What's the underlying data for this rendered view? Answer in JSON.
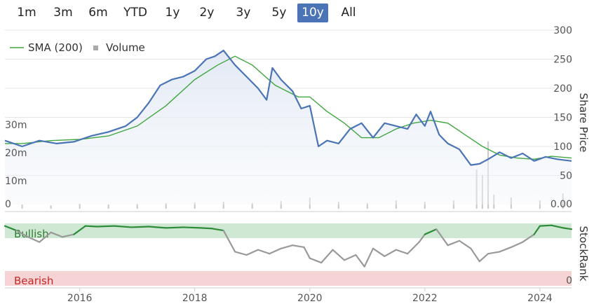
{
  "range_selector": {
    "buttons": [
      {
        "label": "1m",
        "active": false
      },
      {
        "label": "3m",
        "active": false
      },
      {
        "label": "6m",
        "active": false
      },
      {
        "label": "YTD",
        "active": false
      },
      {
        "label": "1y",
        "active": false
      },
      {
        "label": "2y",
        "active": false
      },
      {
        "label": "3y",
        "active": false
      },
      {
        "label": "5y",
        "active": false
      },
      {
        "label": "10y",
        "active": true
      },
      {
        "label": "All",
        "active": false
      }
    ]
  },
  "legend": {
    "sma_label": "SMA (200)",
    "volume_label": "Volume"
  },
  "colors": {
    "price": "#4a74b5",
    "sma": "#3fa63f",
    "bull_band": "#cfe8d4",
    "bear_band": "#f6d3d5",
    "bull_text": "#2e7d32",
    "bear_text": "#c62828",
    "stockrank_bull": "#2e8b3a",
    "stockrank_neutral": "#999999"
  },
  "chart_data": [
    {
      "type": "line",
      "y_title": "Share Price",
      "y_ticks": [
        "300",
        "250",
        "200",
        "150",
        "100",
        "50"
      ],
      "ylim": [
        0,
        300
      ],
      "x_ticks": [
        "2016",
        "2018",
        "2020",
        "2022",
        "2024"
      ],
      "xlim": [
        2014.7,
        2024.55
      ],
      "series": [
        {
          "name": "",
          "x": [
            2014.7,
            2015.0,
            2015.3,
            2015.6,
            2015.9,
            2016.2,
            2016.5,
            2016.8,
            2017.0,
            2017.2,
            2017.4,
            2017.6,
            2017.8,
            2018.0,
            2018.2,
            2018.35,
            2018.5,
            2018.7,
            2018.9,
            2019.1,
            2019.25,
            2019.35,
            2019.5,
            2019.7,
            2019.85,
            2020.0,
            2020.15,
            2020.3,
            2020.5,
            2020.7,
            2020.9,
            2021.1,
            2021.3,
            2021.5,
            2021.7,
            2021.85,
            2022.0,
            2022.1,
            2022.25,
            2022.4,
            2022.6,
            2022.8,
            2022.95,
            2023.1,
            2023.3,
            2023.5,
            2023.7,
            2023.9,
            2024.1,
            2024.3,
            2024.55
          ],
          "values": [
            110,
            100,
            110,
            105,
            108,
            118,
            125,
            135,
            150,
            175,
            205,
            215,
            220,
            230,
            250,
            255,
            265,
            240,
            220,
            200,
            180,
            235,
            215,
            195,
            165,
            170,
            100,
            110,
            105,
            130,
            140,
            115,
            140,
            135,
            130,
            155,
            135,
            160,
            120,
            105,
            95,
            68,
            70,
            78,
            90,
            80,
            88,
            75,
            82,
            78,
            75
          ]
        },
        {
          "name": "SMA (200)",
          "x": [
            2014.7,
            2015.0,
            2015.5,
            2016.0,
            2016.5,
            2017.0,
            2017.5,
            2018.0,
            2018.4,
            2018.7,
            2019.0,
            2019.4,
            2019.8,
            2020.0,
            2020.3,
            2020.6,
            2020.9,
            2021.2,
            2021.5,
            2021.8,
            2022.1,
            2022.4,
            2022.7,
            2023.0,
            2023.3,
            2023.6,
            2023.9,
            2024.2,
            2024.55
          ],
          "values": [
            105,
            105,
            110,
            112,
            118,
            135,
            170,
            215,
            240,
            255,
            240,
            205,
            185,
            185,
            160,
            140,
            115,
            115,
            130,
            140,
            145,
            140,
            120,
            100,
            85,
            80,
            78,
            83,
            80
          ]
        }
      ]
    },
    {
      "type": "bar",
      "y_title": "",
      "y_ticks_left": [
        "30m",
        "20m",
        "10m",
        "0"
      ],
      "y_ticks_right": [
        "0.00"
      ],
      "ylim": [
        0,
        30
      ],
      "series": [
        {
          "name": "Volume",
          "x": [
            2015.0,
            2015.5,
            2016.0,
            2016.5,
            2017.0,
            2017.5,
            2018.0,
            2018.5,
            2019.0,
            2019.5,
            2020.0,
            2020.5,
            2021.0,
            2021.5,
            2022.0,
            2022.5,
            2022.9,
            2023.0,
            2023.1,
            2023.2,
            2023.5,
            2024.0,
            2024.4
          ],
          "values": [
            1.5,
            1.2,
            1.8,
            1.5,
            1.7,
            2.0,
            2.2,
            2.5,
            2.0,
            2.8,
            4.0,
            2.5,
            2.0,
            3.0,
            2.5,
            3.0,
            14.0,
            12.0,
            24.0,
            5.0,
            4.0,
            3.0,
            5.5
          ]
        }
      ]
    },
    {
      "type": "line",
      "y_title": "StockRank",
      "band_labels": [
        "Bullish",
        "Bearish"
      ],
      "right_tick": "0",
      "ylim": [
        0,
        100
      ],
      "series": [
        {
          "name": "",
          "x": [
            2014.7,
            2014.9,
            2015.1,
            2015.3,
            2015.5,
            2015.7,
            2015.9,
            2016.1,
            2016.3,
            2016.6,
            2016.9,
            2017.2,
            2017.5,
            2017.8,
            2018.1,
            2018.3,
            2018.5,
            2018.7,
            2018.9,
            2019.1,
            2019.3,
            2019.5,
            2019.7,
            2019.9,
            2020.0,
            2020.2,
            2020.4,
            2020.6,
            2020.8,
            2020.95,
            2021.1,
            2021.3,
            2021.5,
            2021.7,
            2021.9,
            2022.0,
            2022.2,
            2022.4,
            2022.6,
            2022.8,
            2022.95,
            2023.1,
            2023.3,
            2023.5,
            2023.7,
            2023.9,
            2024.0,
            2024.2,
            2024.4,
            2024.55
          ],
          "values": [
            95,
            88,
            78,
            70,
            85,
            78,
            82,
            95,
            94,
            95,
            93,
            94,
            92,
            93,
            92,
            91,
            88,
            55,
            50,
            58,
            52,
            60,
            65,
            62,
            45,
            38,
            58,
            42,
            50,
            32,
            60,
            48,
            58,
            52,
            70,
            82,
            90,
            65,
            72,
            60,
            40,
            52,
            55,
            62,
            70,
            82,
            95,
            96,
            92,
            90
          ]
        }
      ]
    }
  ]
}
